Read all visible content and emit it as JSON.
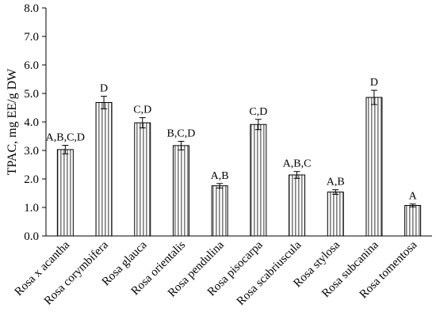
{
  "chart_data": {
    "type": "bar",
    "ylabel": "TPAC, mg EE/g DW",
    "xlabel": "",
    "ylim": [
      0.0,
      8.0
    ],
    "yticks": [
      "0.0",
      "1.0",
      "2.0",
      "3.0",
      "4.0",
      "5.0",
      "6.0",
      "7.0",
      "8.0"
    ],
    "grid": false,
    "bar_fill": "vertical-stripes",
    "colors": {
      "bar_stroke": "#000000",
      "stripe": "#7f7f7f",
      "axis": "#000000",
      "background": "#ffffff"
    },
    "categories": [
      "Rosa x acantha",
      "Rosa corymbifera",
      "Rosa glauca",
      "Rosa orientalis",
      "Rosa pendulina",
      "Rosa pisocarpa",
      "Rosa scabriuscula",
      "Rosa stylosa",
      "Rosa subcanina",
      "Rosa tomentosa"
    ],
    "values": [
      3.03,
      4.68,
      3.97,
      3.17,
      1.76,
      3.91,
      2.14,
      1.54,
      4.86,
      1.07
    ],
    "errors": [
      0.15,
      0.22,
      0.18,
      0.15,
      0.08,
      0.18,
      0.12,
      0.08,
      0.25,
      0.05
    ],
    "labels": [
      "A,B,C,D",
      "D",
      "C,D",
      "B,C,D",
      "A,B",
      "C,D",
      "A,B,C",
      "A,B",
      "D",
      "A"
    ]
  }
}
